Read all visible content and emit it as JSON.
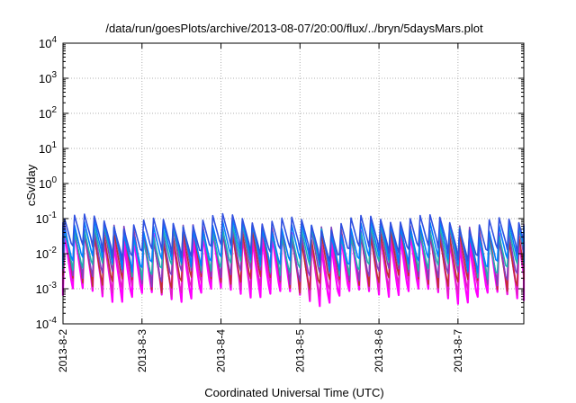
{
  "chart_data": {
    "type": "line",
    "title": "/data/run/goesPlots/archive/2013-08-07/20:00/flux/../bryn/5daysMars.plot",
    "xlabel": "Coordinated Universal Time (UTC)",
    "ylabel": "cSv/day",
    "y_scale": "log",
    "ylim": [
      0.0001,
      10000
    ],
    "y_ticks": [
      {
        "base": "10",
        "exp": "-4"
      },
      {
        "base": "10",
        "exp": "-3"
      },
      {
        "base": "10",
        "exp": "-2"
      },
      {
        "base": "10",
        "exp": "-1"
      },
      {
        "base": "10",
        "exp": "0"
      },
      {
        "base": "10",
        "exp": "1"
      },
      {
        "base": "10",
        "exp": "2"
      },
      {
        "base": "10",
        "exp": "3"
      },
      {
        "base": "10",
        "exp": "4"
      }
    ],
    "xlim": [
      "2013-08-02 00:00",
      "2013-08-07 20:00"
    ],
    "x_ticks": [
      "2013-8-2",
      "2013-8-3",
      "2013-8-4",
      "2013-8-5",
      "2013-8-6",
      "2013-8-7"
    ],
    "grid": true,
    "cycle_hours": 3,
    "series": [
      {
        "color": "#ff00ff",
        "peak": 0.04,
        "trough": 0.0007
      },
      {
        "color": "#e020c0",
        "peak": 0.045,
        "trough": 0.0011
      },
      {
        "color": "#c03030",
        "peak": 0.05,
        "trough": 0.0016
      },
      {
        "color": "#8040c0",
        "peak": 0.06,
        "trough": 0.0025
      },
      {
        "color": "#20b0b0",
        "peak": 0.055,
        "trough": 0.004
      },
      {
        "color": "#0080ff",
        "peak": 0.07,
        "trough": 0.006
      },
      {
        "color": "#3050e0",
        "peak": 0.1,
        "trough": 0.012
      }
    ]
  }
}
